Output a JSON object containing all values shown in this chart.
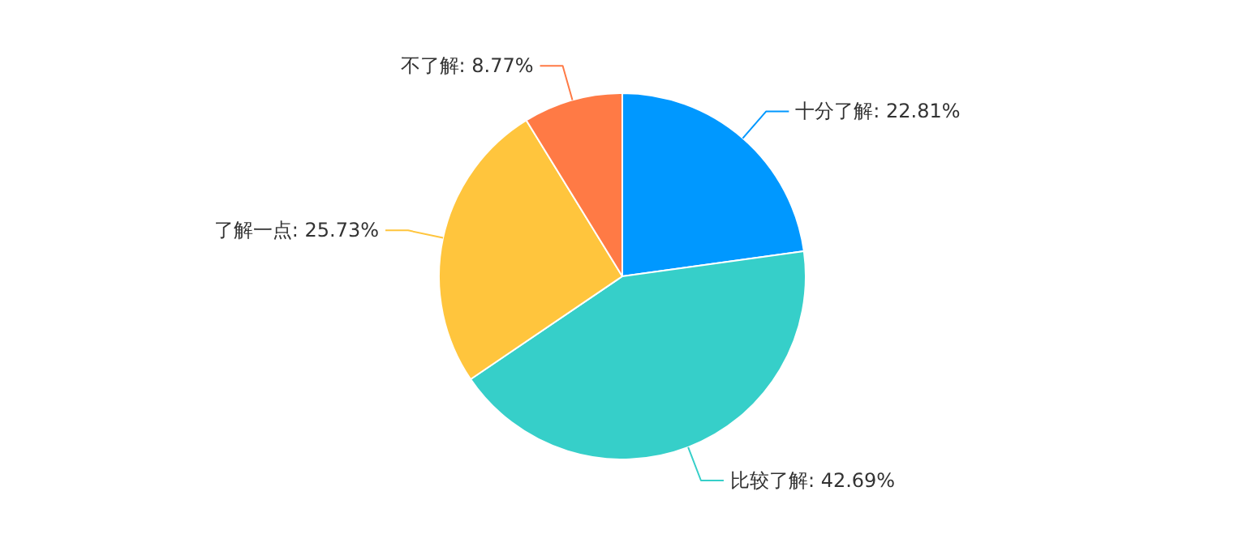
{
  "chart_data": {
    "type": "pie",
    "categories": [
      "十分了解",
      "比较了解",
      "了解一点",
      "不了解"
    ],
    "values": [
      22.81,
      42.69,
      25.73,
      8.77
    ],
    "colors": [
      "#0098ff",
      "#36cfc9",
      "#ffc53d",
      "#ff7a45"
    ],
    "value_labels": [
      "22.81%",
      "42.69%",
      "25.73%",
      "8.77%"
    ]
  }
}
